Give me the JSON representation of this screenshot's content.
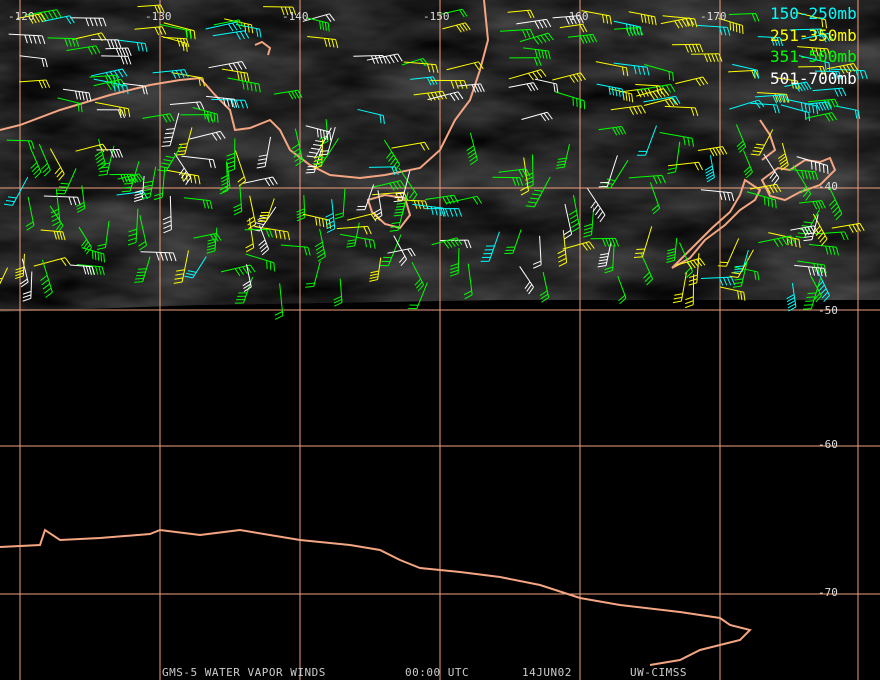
{
  "map": {
    "longitude_labels": [
      "-120",
      "-130",
      "-140",
      "-150",
      "-160",
      "-170"
    ],
    "latitude_labels": [
      "-40",
      "-50",
      "-60",
      "-70"
    ],
    "legend": [
      "150-250mb",
      "251-350mb",
      "351-500mb",
      "501-700mb"
    ],
    "footer": [
      "GMS-5 WATER VAPOR WINDS",
      "00:00 UTC",
      "14JUN02",
      "UW-CIMSS"
    ]
  }
}
